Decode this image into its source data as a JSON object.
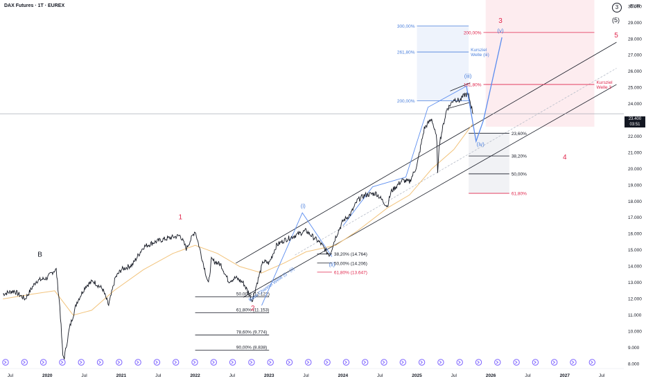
{
  "header": {
    "symbol_title": "DAX Futures · 1T · EUREX",
    "currency": "EUR",
    "last_price": "23.400",
    "countdown": "03:51"
  },
  "wave_degree": {
    "circled": "3",
    "paren": "(5)",
    "red": "5"
  },
  "colors": {
    "price": "#131722",
    "ma": "#f2c37b",
    "fib_blue": "#4a7fdc",
    "fib_red": "#e0254b",
    "fib_black": "#131722",
    "channel": "#131722",
    "wave_path": "#5b8def",
    "red_zone": "#fdecef",
    "blue_zone": "#eef3fc",
    "event": "#7b61ff"
  },
  "chart_data": {
    "type": "line",
    "title": "DAX Futures · 1T · EUREX",
    "ylim": [
      7800,
      30400
    ],
    "y_scale": "linear",
    "y_ticks": [
      "8.000",
      "9.000",
      "10.000",
      "11.000",
      "12.000",
      "13.000",
      "14.000",
      "15.000",
      "16.000",
      "17.000",
      "18.000",
      "19.000",
      "20.000",
      "21.000",
      "22.000",
      "23.000",
      "24.000",
      "25.000",
      "26.000",
      "27.000",
      "28.000",
      "29.000",
      "30.000"
    ],
    "x_ticks": [
      {
        "t": 2019.5,
        "label": "Jul"
      },
      {
        "t": 2020.0,
        "label": "2020"
      },
      {
        "t": 2020.5,
        "label": "Jul"
      },
      {
        "t": 2021.0,
        "label": "2021"
      },
      {
        "t": 2021.5,
        "label": "Jul"
      },
      {
        "t": 2022.0,
        "label": "2022"
      },
      {
        "t": 2022.5,
        "label": "Jul"
      },
      {
        "t": 2023.0,
        "label": "2023"
      },
      {
        "t": 2023.5,
        "label": "Jul"
      },
      {
        "t": 2024.0,
        "label": "2024"
      },
      {
        "t": 2024.5,
        "label": "Jul"
      },
      {
        "t": 2025.0,
        "label": "2025"
      },
      {
        "t": 2025.5,
        "label": "Jul"
      },
      {
        "t": 2026.0,
        "label": "2026"
      },
      {
        "t": 2026.5,
        "label": "Jul"
      },
      {
        "t": 2027.0,
        "label": "2027"
      },
      {
        "t": 2027.5,
        "label": "Jul"
      }
    ],
    "price_series": [
      [
        2019.4,
        12300
      ],
      [
        2019.55,
        12500
      ],
      [
        2019.7,
        12000
      ],
      [
        2019.85,
        13100
      ],
      [
        2020.0,
        13300
      ],
      [
        2020.08,
        13700
      ],
      [
        2020.12,
        13800
      ],
      [
        2020.17,
        11500
      ],
      [
        2020.21,
        8500
      ],
      [
        2020.23,
        8400
      ],
      [
        2020.3,
        10200
      ],
      [
        2020.4,
        11800
      ],
      [
        2020.52,
        12800
      ],
      [
        2020.62,
        13100
      ],
      [
        2020.75,
        12600
      ],
      [
        2020.83,
        11600
      ],
      [
        2020.92,
        13300
      ],
      [
        2021.0,
        13800
      ],
      [
        2021.15,
        14100
      ],
      [
        2021.3,
        15200
      ],
      [
        2021.45,
        15500
      ],
      [
        2021.6,
        15700
      ],
      [
        2021.8,
        15900
      ],
      [
        2021.88,
        15100
      ],
      [
        2022.0,
        16200
      ],
      [
        2022.05,
        15300
      ],
      [
        2022.12,
        14000
      ],
      [
        2022.18,
        12900
      ],
      [
        2022.22,
        14400
      ],
      [
        2022.35,
        14100
      ],
      [
        2022.45,
        13100
      ],
      [
        2022.55,
        13300
      ],
      [
        2022.65,
        13000
      ],
      [
        2022.72,
        12400
      ],
      [
        2022.77,
        11900
      ],
      [
        2022.82,
        12700
      ],
      [
        2022.92,
        14300
      ],
      [
        2023.0,
        14200
      ],
      [
        2023.1,
        15300
      ],
      [
        2023.2,
        15600
      ],
      [
        2023.35,
        15900
      ],
      [
        2023.5,
        16200
      ],
      [
        2023.6,
        15800
      ],
      [
        2023.7,
        15400
      ],
      [
        2023.78,
        14900
      ],
      [
        2023.82,
        14700
      ],
      [
        2023.9,
        15800
      ],
      [
        2024.0,
        16800
      ],
      [
        2024.1,
        17200
      ],
      [
        2024.2,
        18100
      ],
      [
        2024.3,
        18400
      ],
      [
        2024.45,
        18500
      ],
      [
        2024.6,
        17700
      ],
      [
        2024.65,
        18600
      ],
      [
        2024.8,
        19300
      ],
      [
        2024.9,
        19200
      ],
      [
        2025.0,
        20200
      ],
      [
        2025.1,
        22500
      ],
      [
        2025.2,
        23100
      ],
      [
        2025.27,
        21800
      ],
      [
        2025.28,
        19600
      ],
      [
        2025.3,
        21500
      ],
      [
        2025.4,
        23600
      ],
      [
        2025.5,
        24300
      ],
      [
        2025.58,
        24200
      ],
      [
        2025.65,
        24600
      ],
      [
        2025.7,
        24500
      ],
      [
        2025.76,
        23400
      ]
    ],
    "moving_average": [
      [
        2019.4,
        12000
      ],
      [
        2019.8,
        12300
      ],
      [
        2020.1,
        12500
      ],
      [
        2020.35,
        11000
      ],
      [
        2020.6,
        11300
      ],
      [
        2020.9,
        12500
      ],
      [
        2021.3,
        13800
      ],
      [
        2021.7,
        14800
      ],
      [
        2022.0,
        15300
      ],
      [
        2022.3,
        14800
      ],
      [
        2022.6,
        14000
      ],
      [
        2022.9,
        13600
      ],
      [
        2023.2,
        14200
      ],
      [
        2023.5,
        14900
      ],
      [
        2023.9,
        15300
      ],
      [
        2024.2,
        16200
      ],
      [
        2024.6,
        17600
      ],
      [
        2024.9,
        18400
      ],
      [
        2025.2,
        20000
      ],
      [
        2025.5,
        21200
      ],
      [
        2025.76,
        22800
      ]
    ],
    "wave_projection": [
      [
        2025.67,
        25100
      ],
      [
        2025.8,
        21700
      ],
      [
        2025.9,
        23000
      ],
      [
        2026.15,
        28100
      ]
    ],
    "impulse_paths": [
      [
        [
          2022.9,
          11600
        ],
        [
          2023.45,
          17300
        ],
        [
          2023.85,
          14600
        ]
      ],
      [
        [
          2024.0,
          16500
        ],
        [
          2024.4,
          18900
        ],
        [
          2024.85,
          19500
        ],
        [
          2025.15,
          23800
        ],
        [
          2025.67,
          25100
        ]
      ]
    ],
    "channels": [
      {
        "name": "upper",
        "from": [
          2022.55,
          14200
        ],
        "to": [
          2027.7,
          27800
        ],
        "color": "#131722"
      },
      {
        "name": "mid",
        "from": [
          2023.35,
          14700
        ],
        "to": [
          2027.7,
          26200
        ],
        "color": "#b6bcc8"
      },
      {
        "name": "lower",
        "from": [
          2022.65,
          12100
        ],
        "to": [
          2027.7,
          25200
        ],
        "color": "#131722"
      },
      {
        "name": "small-upper",
        "from": [
          2025.45,
          24800
        ],
        "to": [
          2025.72,
          25300
        ],
        "color": "#131722"
      },
      {
        "name": "small-lower",
        "from": [
          2025.4,
          23700
        ],
        "to": [
          2025.72,
          24100
        ],
        "color": "#131722"
      }
    ],
    "fib_levels": [
      {
        "label": "300,00%",
        "value": 28800,
        "x0": 2025.0,
        "x1": 2025.7,
        "color": "#4a7fdc",
        "label_side": "left"
      },
      {
        "label": "261,80%",
        "value": 27200,
        "x0": 2025.0,
        "x1": 2025.7,
        "color": "#4a7fdc",
        "label_side": "left"
      },
      {
        "label": "200,00%",
        "value": 24200,
        "x0": 2025.0,
        "x1": 2025.7,
        "color": "#4a7fdc",
        "label_side": "left"
      },
      {
        "label": "200,00%",
        "value": 28400,
        "x0": 2025.9,
        "x1": 2027.4,
        "color": "#e0254b",
        "label_side": "left"
      },
      {
        "label": "161,80%",
        "value": 25200,
        "x0": 2025.9,
        "x1": 2027.4,
        "color": "#e0254b",
        "label_side": "left"
      },
      {
        "label": "23,60%",
        "value": 22200,
        "x0": 2025.7,
        "x1": 2026.25,
        "color": "#131722",
        "label_side": "right"
      },
      {
        "label": "38,20%",
        "value": 20800,
        "x0": 2025.7,
        "x1": 2026.25,
        "color": "#131722",
        "label_side": "right"
      },
      {
        "label": "50,00%",
        "value": 19700,
        "x0": 2025.7,
        "x1": 2026.25,
        "color": "#131722",
        "label_side": "right"
      },
      {
        "label": "61,80%",
        "value": 18500,
        "x0": 2025.7,
        "x1": 2026.25,
        "color": "#e0254b",
        "label_side": "right"
      },
      {
        "label": "38,20% (14.764)",
        "value": 14764,
        "x0": 2023.65,
        "x1": 2023.85,
        "color": "#131722",
        "label_side": "right"
      },
      {
        "label": "50,00% (14.206)",
        "value": 14206,
        "x0": 2023.65,
        "x1": 2023.85,
        "color": "#131722",
        "label_side": "right"
      },
      {
        "label": "61,80% (13.647)",
        "value": 13647,
        "x0": 2023.65,
        "x1": 2023.85,
        "color": "#e0254b",
        "label_side": "right"
      },
      {
        "label": "50,00% (12.122)",
        "value": 12122,
        "x0": 2022.0,
        "x1": 2023.0,
        "color": "#131722",
        "label_side": "inside"
      },
      {
        "label": "61,80% (11.153)",
        "value": 11153,
        "x0": 2022.0,
        "x1": 2023.0,
        "color": "#131722",
        "label_side": "inside"
      },
      {
        "label": "78,60% (9.774)",
        "value": 9774,
        "x0": 2022.0,
        "x1": 2023.0,
        "color": "#131722",
        "label_side": "inside"
      },
      {
        "label": "90,00% (8.838)",
        "value": 8838,
        "x0": 2022.0,
        "x1": 2023.0,
        "color": "#131722",
        "label_side": "inside"
      }
    ],
    "zones": [
      {
        "name": "red-target",
        "x0": 2025.93,
        "x1": 2027.4,
        "y0": 22600,
        "y1": 30400,
        "color": "#fdecef"
      },
      {
        "name": "blue-target",
        "x0": 2025.0,
        "x1": 2025.7,
        "y0": 24200,
        "y1": 28800,
        "color": "#eef3fc"
      },
      {
        "name": "grey-correction",
        "x0": 2025.7,
        "x1": 2026.25,
        "y0": 18500,
        "y1": 22200,
        "color": "#f1f2f5"
      }
    ],
    "wave_labels": [
      {
        "text": "B",
        "t": 2019.9,
        "v": 14600,
        "color": "#131722"
      },
      {
        "text": "1",
        "t": 2021.8,
        "v": 16900,
        "color": "#e0254b"
      },
      {
        "text": "2",
        "t": 2022.78,
        "v": 11300,
        "color": "#e0254b"
      },
      {
        "text": "(i)",
        "t": 2023.46,
        "v": 17600,
        "color": "#4a7fdc"
      },
      {
        "text": "(ii)",
        "t": 2023.85,
        "v": 14000,
        "color": "#4a7fdc"
      },
      {
        "text": "(iii)",
        "t": 2025.69,
        "v": 25600,
        "color": "#4a7fdc"
      },
      {
        "text": "(iv)",
        "t": 2025.86,
        "v": 21400,
        "color": "#4a7fdc"
      },
      {
        "text": "(v)",
        "t": 2026.13,
        "v": 28400,
        "color": "#4a7fdc"
      },
      {
        "text": "3",
        "t": 2026.13,
        "v": 29000,
        "color": "#e0254b"
      },
      {
        "text": "4",
        "t": 2027.0,
        "v": 20600,
        "color": "#e0254b"
      }
    ],
    "annotations": [
      {
        "lines": [
          "Kursziel",
          "Welle (iii)"
        ],
        "t": 2025.7,
        "v": 27200,
        "color": "#4a7fdc"
      },
      {
        "lines": [
          "Kursziel",
          "Welle 3"
        ],
        "t": 2027.4,
        "v": 25200,
        "color": "#e0254b"
      },
      {
        "lines": [
          "Base Channel Welle (i) - (ii)"
        ],
        "t": 2022.72,
        "v": 11800,
        "color": "#4a7fdc",
        "rotate": -36
      }
    ],
    "price_line": 23400,
    "legend": "none",
    "grid": false
  }
}
